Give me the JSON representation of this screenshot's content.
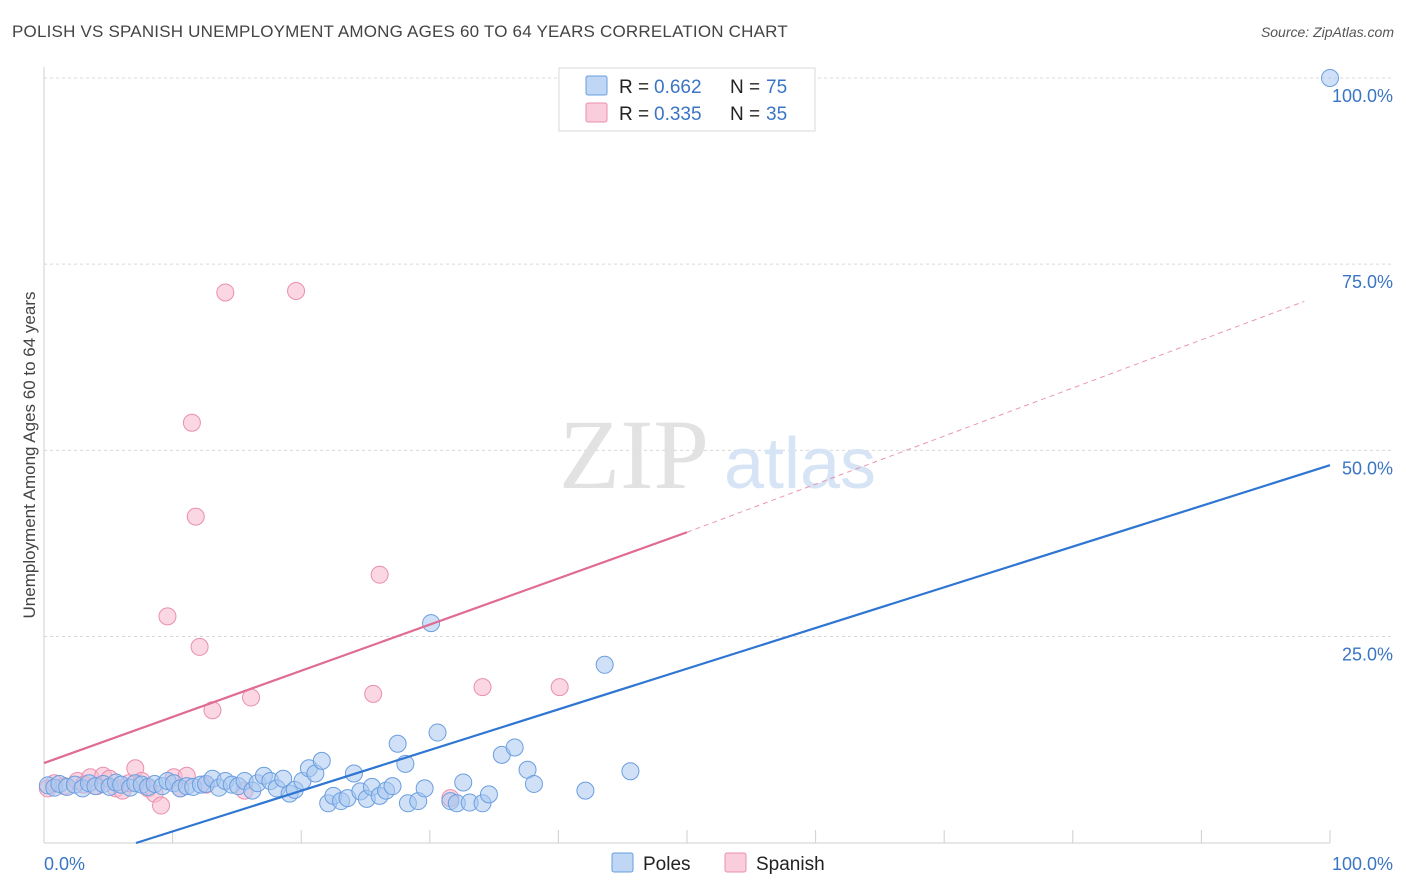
{
  "header": {
    "title": "POLISH VS SPANISH UNEMPLOYMENT AMONG AGES 60 TO 64 YEARS CORRELATION CHART",
    "source": "Source: ZipAtlas.com"
  },
  "watermark": {
    "zip": "ZIP",
    "atlas": "atlas"
  },
  "colors": {
    "poles_fill": "#a9c8f0",
    "poles_stroke": "#6a9ee0",
    "poles_line": "#2f76d2",
    "spanish_fill": "#f7bcd0",
    "spanish_stroke": "#ea8fae",
    "spanish_line": "#e06b93",
    "tick_text": "#3a75c4",
    "grid": "#d8d8d8"
  },
  "legend": {
    "r_label": "R =",
    "n_label": "N =",
    "poles": {
      "r": "0.662",
      "n": "75"
    },
    "spanish": {
      "r": "0.335",
      "n": "35"
    }
  },
  "bottom_legend": {
    "poles": "Poles",
    "spanish": "Spanish"
  },
  "chart_data": {
    "type": "scatter",
    "title": "POLISH VS SPANISH UNEMPLOYMENT AMONG AGES 60 TO 64 YEARS CORRELATION CHART",
    "xlabel": "",
    "ylabel": "Unemployment Among Ages 60 to 64 years",
    "xlim": [
      0,
      100
    ],
    "ylim": [
      -3,
      103
    ],
    "x_tick_labels": [
      "0.0%",
      "100.0%"
    ],
    "y_ticks": [
      25,
      50,
      75,
      100
    ],
    "y_tick_labels": [
      "25.0%",
      "50.0%",
      "75.0%",
      "100.0%"
    ],
    "series": [
      {
        "name": "Poles",
        "r": 0.662,
        "n": 75,
        "trend": {
          "x0": 0,
          "y0": -4.5,
          "x1": 100,
          "y1": 48
        },
        "points": [
          [
            0.3,
            5
          ],
          [
            0.8,
            4.7
          ],
          [
            1.2,
            5.2
          ],
          [
            1.8,
            4.8
          ],
          [
            2.4,
            5.1
          ],
          [
            3,
            4.6
          ],
          [
            3.5,
            5.3
          ],
          [
            4,
            4.9
          ],
          [
            4.6,
            5.2
          ],
          [
            5.1,
            4.8
          ],
          [
            5.6,
            5.4
          ],
          [
            6,
            5.1
          ],
          [
            6.7,
            4.7
          ],
          [
            7.1,
            5.3
          ],
          [
            7.6,
            5.1
          ],
          [
            8.1,
            4.8
          ],
          [
            8.6,
            5.2
          ],
          [
            9.2,
            4.9
          ],
          [
            9.6,
            5.6
          ],
          [
            10.1,
            5.3
          ],
          [
            10.6,
            4.6
          ],
          [
            11.1,
            4.9
          ],
          [
            11.6,
            4.8
          ],
          [
            12.2,
            5.1
          ],
          [
            12.6,
            5.2
          ],
          [
            13.1,
            5.9
          ],
          [
            13.6,
            4.7
          ],
          [
            14.1,
            5.6
          ],
          [
            14.6,
            5.1
          ],
          [
            15.1,
            4.9
          ],
          [
            15.6,
            5.6
          ],
          [
            16.2,
            4.3
          ],
          [
            16.6,
            5.3
          ],
          [
            17.1,
            6.3
          ],
          [
            17.6,
            5.6
          ],
          [
            18.1,
            4.6
          ],
          [
            18.6,
            5.9
          ],
          [
            19.1,
            3.9
          ],
          [
            19.5,
            4.4
          ],
          [
            20.1,
            5.6
          ],
          [
            20.6,
            7.3
          ],
          [
            21.1,
            6.6
          ],
          [
            21.6,
            8.3
          ],
          [
            22.1,
            2.6
          ],
          [
            22.5,
            3.6
          ],
          [
            23.1,
            2.9
          ],
          [
            23.6,
            3.3
          ],
          [
            24.1,
            6.6
          ],
          [
            24.6,
            4.2
          ],
          [
            25.1,
            3.2
          ],
          [
            25.5,
            4.8
          ],
          [
            26.1,
            3.6
          ],
          [
            26.6,
            4.3
          ],
          [
            27.1,
            4.9
          ],
          [
            27.5,
            10.6
          ],
          [
            28.1,
            7.9
          ],
          [
            28.3,
            2.6
          ],
          [
            29.1,
            2.9
          ],
          [
            29.6,
            4.6
          ],
          [
            30.1,
            26.8
          ],
          [
            30.6,
            12.1
          ],
          [
            31.6,
            2.9
          ],
          [
            32.1,
            2.6
          ],
          [
            32.6,
            5.4
          ],
          [
            33.1,
            2.7
          ],
          [
            34.1,
            2.6
          ],
          [
            34.6,
            3.8
          ],
          [
            35.6,
            9.1
          ],
          [
            36.6,
            10.1
          ],
          [
            37.6,
            7.1
          ],
          [
            38.1,
            5.2
          ],
          [
            42.1,
            4.3
          ],
          [
            43.6,
            21.2
          ],
          [
            45.6,
            6.9
          ],
          [
            100,
            100
          ]
        ]
      },
      {
        "name": "Spanish",
        "r": 0.335,
        "n": 35,
        "trend": {
          "x0": 0,
          "y0": 8,
          "x1": 50,
          "y1": 39
        },
        "trend_dashed": {
          "x0": 50,
          "y0": 39,
          "x1": 98,
          "y1": 70
        },
        "points": [
          [
            0.3,
            4.6
          ],
          [
            0.8,
            5.3
          ],
          [
            1.6,
            4.9
          ],
          [
            2.6,
            5.6
          ],
          [
            3.1,
            5.1
          ],
          [
            3.6,
            6.1
          ],
          [
            4.1,
            4.9
          ],
          [
            4.6,
            6.3
          ],
          [
            5.1,
            5.9
          ],
          [
            5.6,
            4.6
          ],
          [
            6.1,
            4.3
          ],
          [
            6.6,
            5.3
          ],
          [
            7.1,
            7.3
          ],
          [
            7.6,
            5.6
          ],
          [
            8.1,
            4.6
          ],
          [
            8.6,
            3.9
          ],
          [
            9.1,
            2.3
          ],
          [
            9.6,
            27.7
          ],
          [
            10.1,
            6.1
          ],
          [
            10.6,
            4.6
          ],
          [
            11.1,
            6.3
          ],
          [
            11.5,
            53.7
          ],
          [
            11.8,
            41.1
          ],
          [
            12.1,
            23.6
          ],
          [
            13.1,
            15.1
          ],
          [
            14.1,
            71.2
          ],
          [
            15.6,
            4.3
          ],
          [
            16.1,
            16.8
          ],
          [
            19.6,
            71.4
          ],
          [
            25.6,
            17.3
          ],
          [
            26.1,
            33.3
          ],
          [
            31.6,
            3.3
          ],
          [
            34.1,
            18.2
          ],
          [
            40.1,
            18.2
          ],
          [
            12.6,
            5.1
          ]
        ]
      }
    ]
  }
}
